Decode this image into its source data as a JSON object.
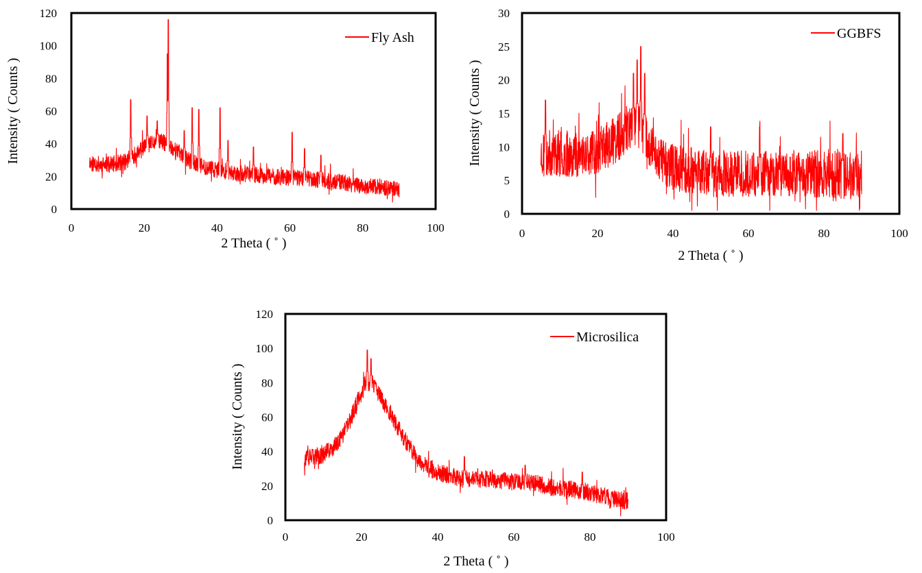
{
  "charts": [
    {
      "type": "line",
      "series": [
        {
          "name": "Fly Ash",
          "color": "#ff0000"
        }
      ],
      "xlabel": "2 Theta ( ˚ )",
      "ylabel": "Intensity ( Counts )",
      "xlim": [
        0,
        100
      ],
      "ylim": [
        0,
        120
      ],
      "xticks": [
        "0",
        "20",
        "40",
        "60",
        "80",
        "100"
      ],
      "yticks": [
        "0",
        "20",
        "40",
        "60",
        "80",
        "100",
        "120"
      ],
      "x_range": [
        5,
        90
      ],
      "legend": "top-right",
      "grid": false,
      "profile": [
        [
          5,
          28
        ],
        [
          10,
          27
        ],
        [
          15,
          29
        ],
        [
          18,
          34
        ],
        [
          20,
          38
        ],
        [
          22,
          40
        ],
        [
          24,
          42
        ],
        [
          26,
          40
        ],
        [
          28,
          37
        ],
        [
          30,
          34
        ],
        [
          32,
          30
        ],
        [
          34,
          28
        ],
        [
          36,
          26
        ],
        [
          40,
          24
        ],
        [
          45,
          22
        ],
        [
          50,
          21
        ],
        [
          55,
          20
        ],
        [
          60,
          19
        ],
        [
          65,
          19
        ],
        [
          70,
          17
        ],
        [
          75,
          16
        ],
        [
          80,
          14
        ],
        [
          85,
          13
        ],
        [
          90,
          12
        ]
      ],
      "noise": 5,
      "peaks": [
        [
          16.3,
          67
        ],
        [
          20.8,
          57
        ],
        [
          23.6,
          54
        ],
        [
          26.6,
          116
        ],
        [
          26.4,
          95
        ],
        [
          31,
          48
        ],
        [
          33.2,
          62
        ],
        [
          35,
          61
        ],
        [
          40.8,
          62
        ],
        [
          43,
          42
        ],
        [
          50,
          38
        ],
        [
          60.6,
          47
        ],
        [
          64,
          37
        ],
        [
          68.5,
          33
        ]
      ]
    },
    {
      "type": "line",
      "series": [
        {
          "name": "GGBFS",
          "color": "#ff0000"
        }
      ],
      "xlabel": "2 Theta ( ˚ )",
      "ylabel": "Intensity ( Counts )",
      "xlim": [
        0,
        100
      ],
      "ylim": [
        0,
        30
      ],
      "xticks": [
        "0",
        "20",
        "40",
        "60",
        "80",
        "100"
      ],
      "yticks": [
        "0",
        "5",
        "10",
        "15",
        "20",
        "25",
        "30"
      ],
      "x_range": [
        5,
        90
      ],
      "legend": "top-right",
      "grid": false,
      "profile": [
        [
          5,
          9
        ],
        [
          15,
          9
        ],
        [
          20,
          9.5
        ],
        [
          25,
          11
        ],
        [
          28,
          13
        ],
        [
          31,
          13
        ],
        [
          34,
          10
        ],
        [
          37,
          8
        ],
        [
          40,
          7
        ],
        [
          50,
          6
        ],
        [
          60,
          6
        ],
        [
          70,
          6
        ],
        [
          80,
          6
        ],
        [
          90,
          5.5
        ]
      ],
      "noise": 3.5,
      "peaks": [
        [
          6.2,
          17
        ],
        [
          29.5,
          21
        ],
        [
          30.5,
          23
        ],
        [
          31.5,
          25
        ],
        [
          32.5,
          21
        ],
        [
          50,
          13
        ],
        [
          63,
          13
        ],
        [
          85,
          12
        ]
      ]
    },
    {
      "type": "line",
      "series": [
        {
          "name": "Microsilica",
          "color": "#ff0000"
        }
      ],
      "xlabel": "2 Theta ( ˚ )",
      "ylabel": "Intensity ( Counts )",
      "xlim": [
        0,
        100
      ],
      "ylim": [
        0,
        120
      ],
      "xticks": [
        "0",
        "20",
        "40",
        "60",
        "80",
        "100"
      ],
      "yticks": [
        "0",
        "20",
        "40",
        "60",
        "80",
        "100",
        "120"
      ],
      "x_range": [
        5,
        90
      ],
      "legend": "top-right",
      "grid": false,
      "profile": [
        [
          5,
          36
        ],
        [
          10,
          38
        ],
        [
          14,
          45
        ],
        [
          17,
          58
        ],
        [
          19,
          70
        ],
        [
          21,
          80
        ],
        [
          23,
          79
        ],
        [
          25,
          72
        ],
        [
          28,
          60
        ],
        [
          31,
          48
        ],
        [
          34,
          38
        ],
        [
          37,
          31
        ],
        [
          40,
          28
        ],
        [
          45,
          25
        ],
        [
          50,
          24
        ],
        [
          55,
          23
        ],
        [
          60,
          23
        ],
        [
          65,
          22
        ],
        [
          70,
          19
        ],
        [
          75,
          18
        ],
        [
          80,
          16
        ],
        [
          85,
          13
        ],
        [
          90,
          11
        ]
      ],
      "noise": 5,
      "peaks": [
        [
          21.5,
          99
        ],
        [
          22.5,
          94
        ],
        [
          47,
          37
        ],
        [
          63,
          32
        ],
        [
          78,
          28
        ]
      ]
    }
  ]
}
